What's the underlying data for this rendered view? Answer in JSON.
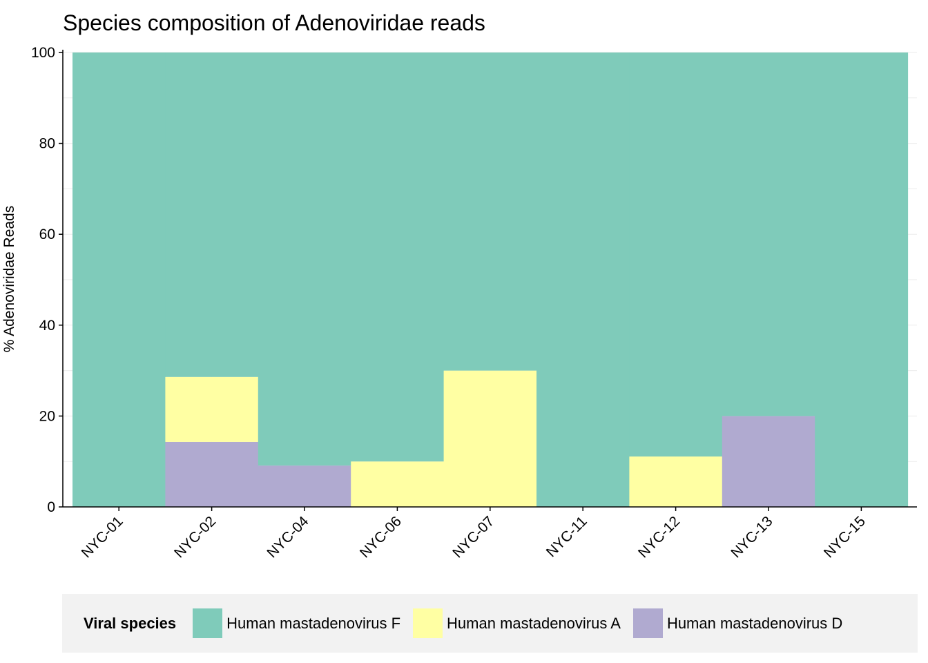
{
  "chart_data": {
    "type": "bar",
    "title": "Species composition of Adenoviridae reads",
    "xlabel": "",
    "ylabel": "% Adenoviridae Reads",
    "ylim": [
      0,
      100
    ],
    "yticks": [
      "0",
      "20",
      "40",
      "60",
      "80",
      "100"
    ],
    "categories": [
      "NYC-01",
      "NYC-02",
      "NYC-04",
      "NYC-06",
      "NYC-07",
      "NYC-11",
      "NYC-12",
      "NYC-13",
      "NYC-15"
    ],
    "stacked": true,
    "grid": true,
    "legend_position": "bottom",
    "legend_title": "Viral species",
    "series": [
      {
        "name": "Human mastadenovirus D",
        "color": "#b0aad0",
        "values": [
          0,
          14.3,
          9.1,
          0,
          0,
          0,
          0,
          20,
          0
        ]
      },
      {
        "name": "Human mastadenovirus A",
        "color": "#ffffa3",
        "values": [
          0,
          14.3,
          0,
          10,
          30,
          0,
          11.1,
          0,
          0
        ]
      },
      {
        "name": "Human mastadenovirus F",
        "color": "#7fcbba",
        "values": [
          100,
          71.4,
          90.9,
          90,
          70,
          100,
          88.9,
          80,
          100
        ]
      }
    ],
    "legend_order": [
      2,
      1,
      0
    ]
  }
}
